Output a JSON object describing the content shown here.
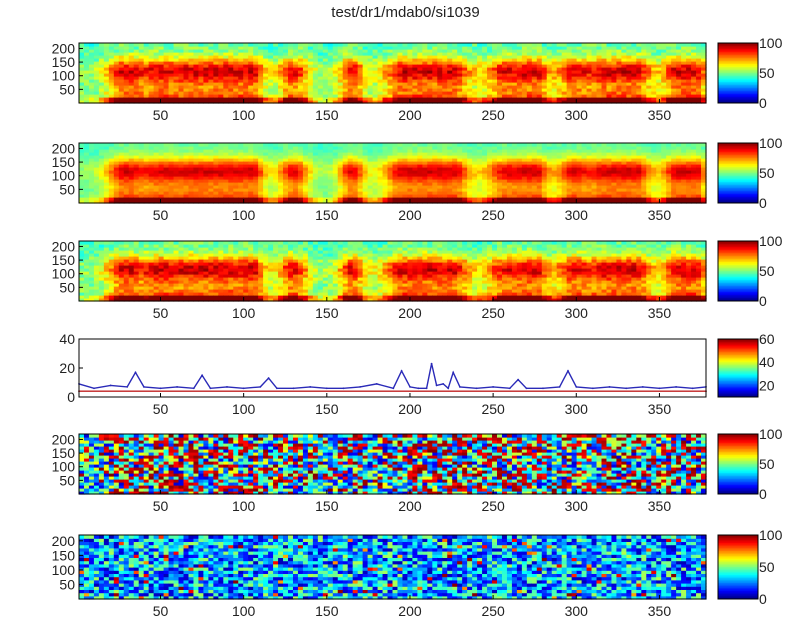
{
  "title": "test/dr1/mdab0/si1039",
  "chart_data": [
    {
      "type": "heatmap",
      "title": "test/dr1/mdab0/si1039",
      "xlabel": "",
      "ylabel": "",
      "x_ticks": [
        "50",
        "100",
        "150",
        "200",
        "250",
        "300",
        "350"
      ],
      "y_ticks": [
        "200",
        "150",
        "100",
        "50"
      ],
      "xlim": [
        1,
        378
      ],
      "ylim": [
        0,
        220
      ],
      "colorbar": {
        "min": 0,
        "max": 100,
        "ticks": [
          "100",
          "50",
          "0"
        ]
      },
      "pattern": "spectrogram",
      "colormap": "jet"
    },
    {
      "type": "heatmap",
      "xlabel": "",
      "ylabel": "",
      "x_ticks": [
        "50",
        "100",
        "150",
        "200",
        "250",
        "300",
        "350"
      ],
      "y_ticks": [
        "200",
        "150",
        "100",
        "50"
      ],
      "xlim": [
        1,
        378
      ],
      "ylim": [
        0,
        220
      ],
      "colorbar": {
        "min": 0,
        "max": 100,
        "ticks": [
          "100",
          "50",
          "0"
        ]
      },
      "pattern": "spectrogram-smooth",
      "colormap": "jet"
    },
    {
      "type": "heatmap",
      "xlabel": "",
      "ylabel": "",
      "x_ticks": [
        "50",
        "100",
        "150",
        "200",
        "250",
        "300",
        "350"
      ],
      "y_ticks": [
        "200",
        "150",
        "100",
        "50"
      ],
      "xlim": [
        1,
        378
      ],
      "ylim": [
        0,
        220
      ],
      "colorbar": {
        "min": 0,
        "max": 100,
        "ticks": [
          "100",
          "50",
          "0"
        ]
      },
      "pattern": "spectrogram",
      "colormap": "jet"
    },
    {
      "type": "line",
      "xlabel": "",
      "ylabel": "",
      "x_ticks": [
        "50",
        "100",
        "150",
        "200",
        "250",
        "300",
        "350"
      ],
      "y_ticks": [
        "40",
        "20",
        "0"
      ],
      "xlim": [
        1,
        378
      ],
      "ylim": [
        0,
        40
      ],
      "colorbar": {
        "min": 10,
        "max": 60,
        "ticks": [
          "60",
          "40",
          "20"
        ]
      },
      "series": [
        {
          "color": "#2a2ab8",
          "x": [
            1,
            10,
            20,
            30,
            35,
            40,
            50,
            60,
            70,
            75,
            80,
            90,
            100,
            110,
            115,
            120,
            130,
            140,
            150,
            160,
            170,
            180,
            190,
            195,
            200,
            205,
            210,
            213,
            216,
            220,
            223,
            226,
            230,
            240,
            250,
            260,
            265,
            270,
            280,
            290,
            295,
            300,
            310,
            320,
            330,
            340,
            350,
            360,
            370,
            378
          ],
          "y": [
            9,
            6,
            8,
            7,
            17,
            7,
            6,
            7,
            6,
            15,
            6,
            7,
            6,
            7,
            13,
            6,
            6,
            7,
            6,
            6,
            7,
            9,
            6,
            18,
            7,
            6,
            6,
            23,
            8,
            9,
            6,
            17,
            7,
            6,
            7,
            6,
            12,
            6,
            6,
            7,
            18,
            7,
            6,
            7,
            6,
            7,
            6,
            7,
            6,
            7
          ]
        },
        {
          "color": "#c02020",
          "x": [
            1,
            378
          ],
          "y": [
            4,
            4
          ]
        }
      ]
    },
    {
      "type": "heatmap",
      "xlabel": "",
      "ylabel": "",
      "x_ticks": [
        "50",
        "100",
        "150",
        "200",
        "250",
        "300",
        "350"
      ],
      "y_ticks": [
        "200",
        "150",
        "100",
        "50"
      ],
      "xlim": [
        1,
        378
      ],
      "ylim": [
        0,
        220
      ],
      "colorbar": {
        "min": 0,
        "max": 100,
        "ticks": [
          "100",
          "50",
          "0"
        ]
      },
      "pattern": "noise-mixed",
      "colormap": "jet"
    },
    {
      "type": "heatmap",
      "xlabel": "",
      "ylabel": "",
      "x_ticks": [
        "50",
        "100",
        "150",
        "200",
        "250",
        "300",
        "350"
      ],
      "y_ticks": [
        "200",
        "150",
        "100",
        "50"
      ],
      "xlim": [
        1,
        378
      ],
      "ylim": [
        0,
        220
      ],
      "colorbar": {
        "min": 0,
        "max": 100,
        "ticks": [
          "100",
          "50",
          "0"
        ]
      },
      "pattern": "noise-low",
      "colormap": "jet"
    }
  ]
}
